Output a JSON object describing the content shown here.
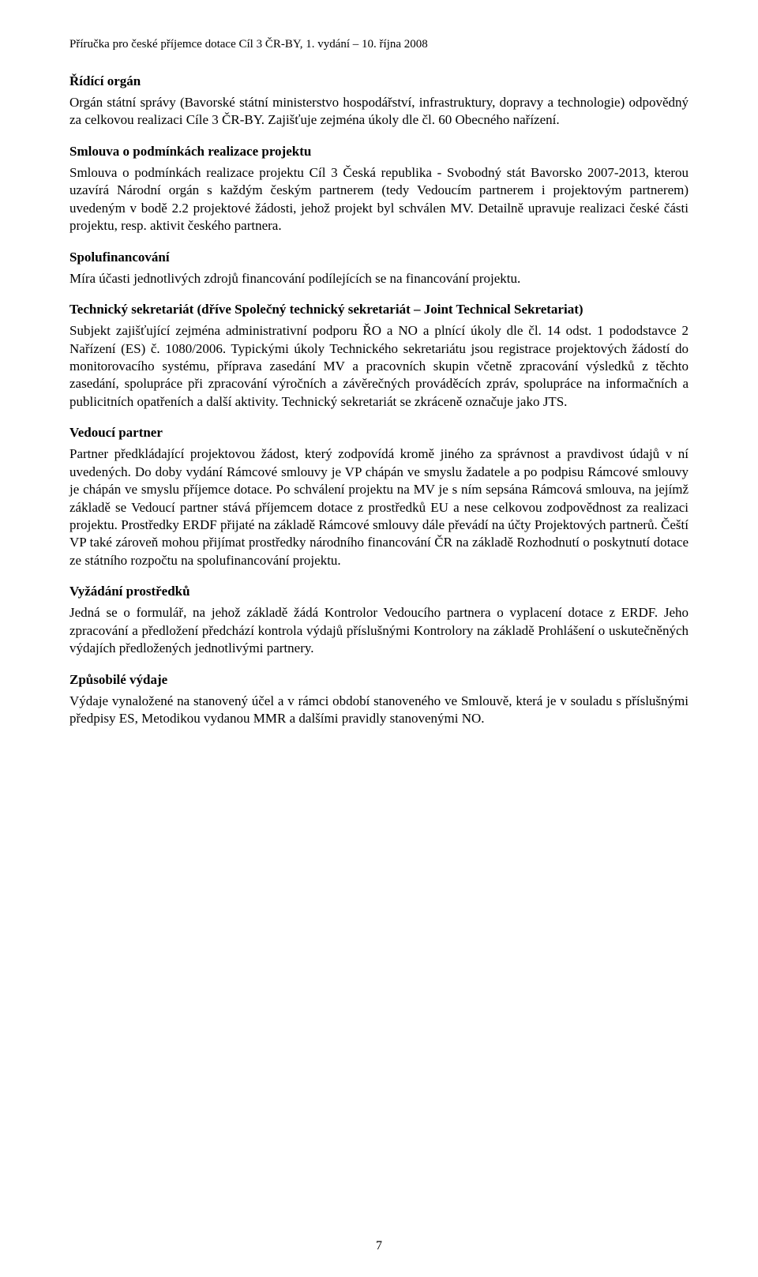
{
  "header": "Příručka pro české příjemce dotace Cíl 3 ČR-BY, 1. vydání – 10. října 2008",
  "sections": {
    "riding_organ": {
      "title": "Řídící orgán",
      "body": "Orgán státní správy (Bavorské státní ministerstvo hospodářství, infrastruktury, dopravy a technologie) odpovědný za celkovou realizaci Cíle 3 ČR-BY. Zajišťuje zejména úkoly dle čl. 60 Obecného nařízení."
    },
    "smlouva": {
      "title": "Smlouva o podmínkách realizace projektu",
      "body": "Smlouva o podmínkách realizace projektu Cíl 3 Česká republika - Svobodný stát Bavorsko 2007-2013, kterou uzavírá Národní orgán s každým českým partnerem (tedy Vedoucím partnerem i projektovým partnerem) uvedeným v bodě 2.2 projektové žádosti, jehož projekt byl schválen MV. Detailně upravuje realizaci české části projektu, resp. aktivit českého partnera."
    },
    "spolufin": {
      "title": "Spolufinancování",
      "body": "Míra účasti jednotlivých zdrojů financování podílejících se na financování projektu."
    },
    "techsek": {
      "title": "Technický sekretariát (dříve Společný technický sekretariát – Joint Technical Sekretariat)",
      "body": "Subjekt zajišťující zejména administrativní podporu ŘO a NO a plnící úkoly dle čl. 14 odst. 1 pododstavce 2 Nařízení (ES) č. 1080/2006. Typickými úkoly Technického sekretariátu jsou registrace projektových žádostí do monitorovacího systému, příprava zasedání MV a pracovních skupin včetně zpracování výsledků z těchto zasedání, spolupráce při zpracování výročních a závěrečných prováděcích zpráv, spolupráce na informačních a publicitních opatřeních a další aktivity. Technický sekretariát se zkráceně označuje jako JTS."
    },
    "vedouci": {
      "title": "Vedoucí partner",
      "body": "Partner předkládající projektovou žádost, který zodpovídá kromě jiného za správnost a pravdivost údajů v ní uvedených. Do doby vydání Rámcové smlouvy je VP chápán ve smyslu žadatele a po podpisu Rámcové smlouvy je chápán ve smyslu příjemce dotace. Po schválení projektu na MV je s ním sepsána Rámcová smlouva, na jejímž základě se Vedoucí partner stává příjemcem dotace z prostředků EU a nese celkovou zodpovědnost za realizaci projektu. Prostředky ERDF přijaté na základě Rámcové smlouvy dále převádí na účty Projektových partnerů. Čeští VP také zároveň mohou přijímat prostředky národního financování ČR na základě Rozhodnutí o poskytnutí dotace ze státního rozpočtu na spolufinancování projektu."
    },
    "vyzadani": {
      "title": "Vyžádání prostředků",
      "body": "Jedná se o formulář, na jehož základě žádá Kontrolor Vedoucího partnera o vyplacení dotace z ERDF. Jeho zpracování a předložení předchází kontrola výdajů příslušnými Kontrolory na základě Prohlášení o uskutečněných výdajích předložených jednotlivými partnery."
    },
    "zpusobile": {
      "title": "Způsobilé výdaje",
      "body": "Výdaje vynaložené na stanovený účel a v rámci období stanoveného ve Smlouvě, která je v souladu s příslušnými předpisy ES, Metodikou vydanou MMR a dalšími pravidly stanovenými NO."
    }
  },
  "page_number": "7"
}
